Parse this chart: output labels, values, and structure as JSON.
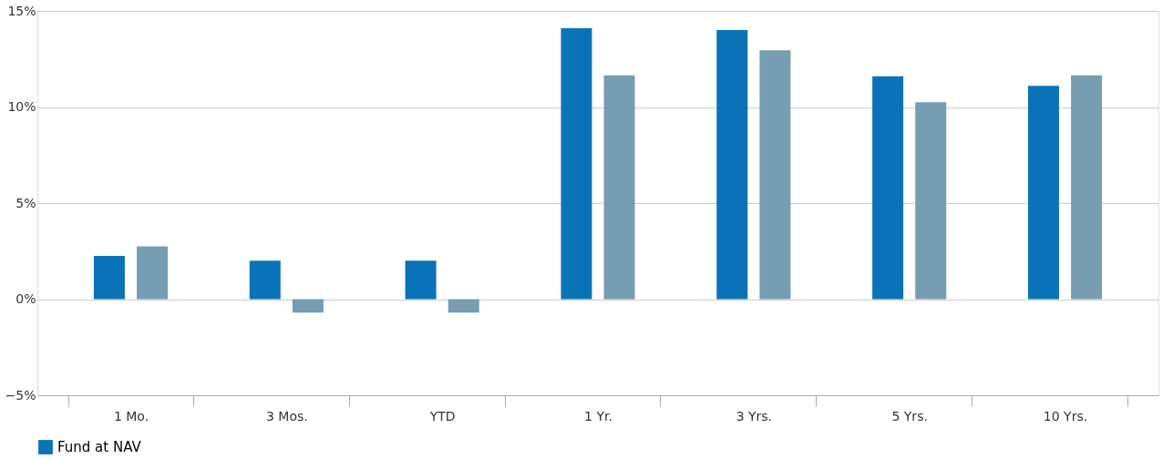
{
  "chart_data": {
    "type": "bar",
    "categories": [
      "1 Mo.",
      "3 Mos.",
      "YTD",
      "1 Yr.",
      "3 Yrs.",
      "5 Yrs.",
      "10 Yrs."
    ],
    "series": [
      {
        "name": "Fund at NAV",
        "color": "#0a73b8",
        "values": [
          2.25,
          2.0,
          2.0,
          14.1,
          14.0,
          11.6,
          11.1
        ]
      },
      {
        "color": "#769db1",
        "values": [
          2.75,
          -0.7,
          -0.7,
          11.65,
          12.95,
          10.25,
          11.65
        ]
      }
    ],
    "ylim": [
      -5,
      15
    ],
    "yticks": [
      {
        "value": -5,
        "label": "−5%"
      },
      {
        "value": 0,
        "label": "0%"
      },
      {
        "value": 5,
        "label": "5%"
      },
      {
        "value": 10,
        "label": "10%"
      },
      {
        "value": 15,
        "label": "15%"
      }
    ],
    "grid": "y",
    "legend": "bottom"
  }
}
